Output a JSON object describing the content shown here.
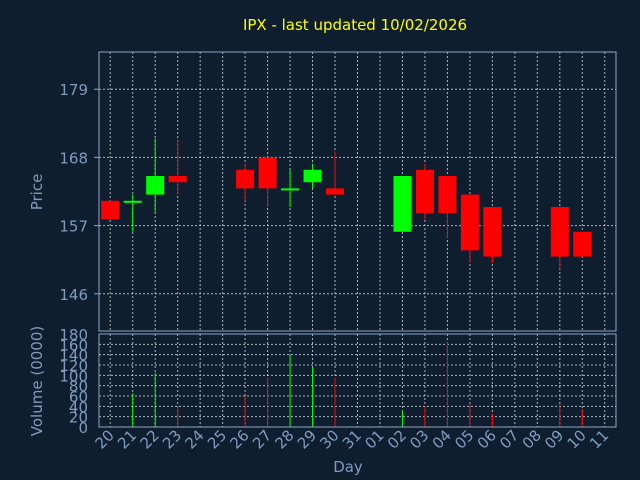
{
  "chart_data": {
    "type": "candlestick",
    "title": "IPX - last updated 10/02/2026",
    "xlabel": "Day",
    "ylabel_price": "Price",
    "ylabel_volume": "Volume (0000)",
    "price_ylim": [
      140,
      185
    ],
    "price_ticks": [
      146,
      157,
      168,
      179
    ],
    "volume_ylim": [
      0,
      180
    ],
    "volume_ticks": [
      0,
      20,
      40,
      60,
      80,
      100,
      120,
      140,
      160,
      180
    ],
    "grid": true,
    "up_color": "#00ff00",
    "down_color": "#ff0000",
    "categories": [
      "20",
      "21",
      "22",
      "23",
      "24",
      "25",
      "26",
      "27",
      "28",
      "29",
      "30",
      "31",
      "01",
      "02",
      "03",
      "04",
      "05",
      "06",
      "07",
      "08",
      "09",
      "10",
      "11"
    ],
    "candles": [
      {
        "day": "20",
        "open": 161,
        "high": 161,
        "low": 158,
        "close": 158,
        "volume": 0
      },
      {
        "day": "21",
        "open": 161,
        "high": 162,
        "low": 156,
        "close": 161,
        "volume": 65
      },
      {
        "day": "22",
        "open": 162,
        "high": 171,
        "low": 159,
        "close": 165,
        "volume": 105
      },
      {
        "day": "23",
        "open": 165,
        "high": 171,
        "low": 162,
        "close": 164,
        "volume": 40
      },
      {
        "day": "26",
        "open": 166,
        "high": 167,
        "low": 161,
        "close": 163,
        "volume": 60
      },
      {
        "day": "27",
        "open": 168,
        "high": 168,
        "low": 160,
        "close": 163,
        "volume": 95
      },
      {
        "day": "28",
        "open": 163,
        "high": 166,
        "low": 160,
        "close": 163,
        "volume": 140
      },
      {
        "day": "29",
        "open": 164,
        "high": 167,
        "low": 163,
        "close": 166,
        "volume": 115
      },
      {
        "day": "30",
        "open": 163,
        "high": 169,
        "low": 162,
        "close": 162,
        "volume": 95
      },
      {
        "day": "02",
        "open": 156,
        "high": 165,
        "low": 156,
        "close": 165,
        "volume": 30
      },
      {
        "day": "03",
        "open": 166,
        "high": 167,
        "low": 158,
        "close": 159,
        "volume": 40
      },
      {
        "day": "04",
        "open": 165,
        "high": 165,
        "low": 155,
        "close": 159,
        "volume": 165
      },
      {
        "day": "05",
        "open": 162,
        "high": 162,
        "low": 151,
        "close": 153,
        "volume": 45
      },
      {
        "day": "06",
        "open": 160,
        "high": 160,
        "low": 151,
        "close": 152,
        "volume": 25
      },
      {
        "day": "09",
        "open": 160,
        "high": 160,
        "low": 150,
        "close": 152,
        "volume": 45
      },
      {
        "day": "10",
        "open": 156,
        "high": 156,
        "low": 152,
        "close": 152,
        "volume": 35
      }
    ]
  }
}
